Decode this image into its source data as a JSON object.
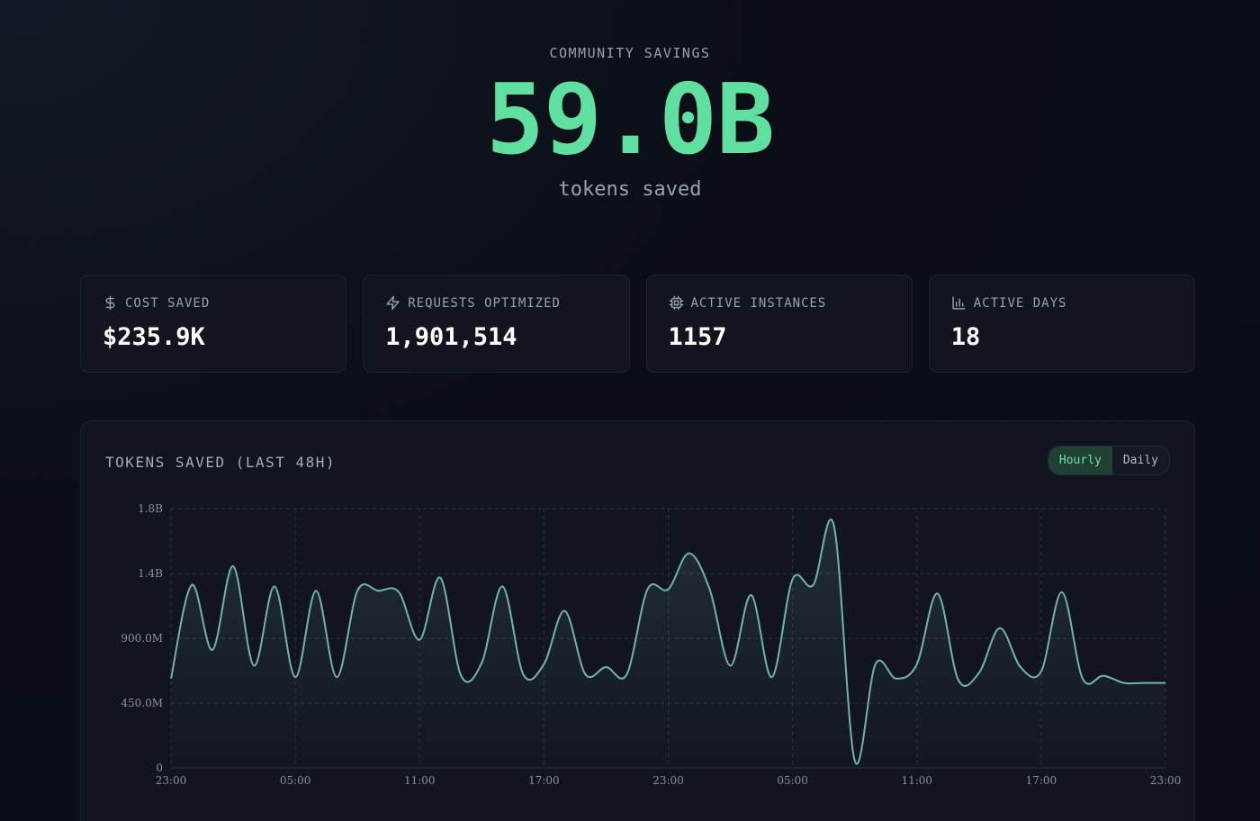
{
  "hero": {
    "label": "COMMUNITY SAVINGS",
    "value": "59.0B",
    "subtitle": "tokens saved"
  },
  "stats": [
    {
      "icon": "dollar-icon",
      "label": "COST SAVED",
      "value": "$235.9K"
    },
    {
      "icon": "lightning-icon",
      "label": "REQUESTS OPTIMIZED",
      "value": "1,901,514"
    },
    {
      "icon": "cpu-icon",
      "label": "ACTIVE INSTANCES",
      "value": "1157"
    },
    {
      "icon": "bar-chart-icon",
      "label": "ACTIVE DAYS",
      "value": "18"
    }
  ],
  "panel": {
    "title": "TOKENS SAVED (LAST 48H)",
    "toggle": {
      "options": [
        "Hourly",
        "Daily"
      ],
      "selected": "Hourly"
    }
  },
  "colors": {
    "accent": "#5fe0a0",
    "line": "#6fb5a8",
    "background": "#0b0e16"
  },
  "chart_data": {
    "type": "area",
    "title": "TOKENS SAVED (LAST 48H)",
    "xlabel": "",
    "ylabel": "",
    "x_tick_labels": [
      "23:00",
      "05:00",
      "11:00",
      "17:00",
      "23:00",
      "05:00",
      "11:00",
      "17:00",
      "23:00"
    ],
    "y_tick_labels": [
      "0",
      "450.0M",
      "900.0M",
      "1.4B",
      "1.8B"
    ],
    "y_tick_values": [
      0,
      450000000,
      900000000,
      1350000000,
      1800000000
    ],
    "ylim": [
      0,
      1800000000
    ],
    "x_range_hours": [
      0,
      48
    ],
    "grid": true,
    "series": [
      {
        "x": [
          0,
          1,
          2,
          3,
          4,
          5,
          6,
          7,
          8,
          9,
          10,
          11,
          12,
          13,
          14,
          15,
          16,
          17,
          18,
          19,
          20,
          21,
          22,
          23,
          24,
          25,
          26,
          27,
          28,
          29,
          30,
          31,
          32,
          33,
          34,
          35,
          36,
          37,
          38,
          39,
          40,
          41,
          42,
          43,
          44,
          45,
          46,
          47,
          48
        ],
        "y": [
          620000000,
          1270000000,
          820000000,
          1400000000,
          710000000,
          1260000000,
          630000000,
          1230000000,
          630000000,
          1230000000,
          1230000000,
          1220000000,
          890000000,
          1320000000,
          640000000,
          730000000,
          1260000000,
          650000000,
          720000000,
          1090000000,
          650000000,
          700000000,
          650000000,
          1240000000,
          1240000000,
          1490000000,
          1240000000,
          710000000,
          1200000000,
          630000000,
          1310000000,
          1270000000,
          1680000000,
          50000000,
          720000000,
          620000000,
          720000000,
          1210000000,
          610000000,
          660000000,
          970000000,
          700000000,
          670000000,
          1220000000,
          620000000,
          640000000,
          590000000,
          590000000,
          590000000
        ]
      }
    ]
  }
}
